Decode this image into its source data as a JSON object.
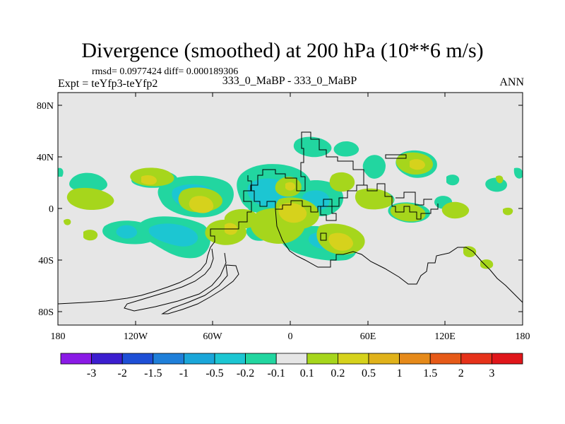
{
  "title": "Divergence (smoothed) at 200 hPa (10**6 m/s)",
  "stats": "rmsd= 0.0977424 diff= 0.000189306",
  "expt": "Expt = teYfp3-teYfp2",
  "case": "333_0_MaBP - 333_0_MaBP",
  "season": "ANN",
  "lat_labels": [
    "80N",
    "40N",
    "0",
    "40S",
    "80S"
  ],
  "lon_labels": [
    "180",
    "120W",
    "60W",
    "0",
    "60E",
    "120E",
    "180"
  ],
  "colorbar": {
    "labels": [
      "-3",
      "-2",
      "-1.5",
      "-1",
      "-0.5",
      "-0.2",
      "-0.1",
      "0.1",
      "0.2",
      "0.5",
      "1",
      "1.5",
      "2",
      "3"
    ],
    "colors": [
      "#8a1ae6",
      "#3c1ecf",
      "#1e4fd6",
      "#1f7fd9",
      "#1aa6d9",
      "#1cc6d2",
      "#22d6a0",
      "#e6e6e6",
      "#a6d61c",
      "#d6d21c",
      "#e0b21a",
      "#e68a1a",
      "#e65a18",
      "#e6321a",
      "#e0161a"
    ]
  },
  "colors": {
    "background": "#e6e6e6",
    "neg_weak": "#22d6a0",
    "neg_mid": "#1cc6d2",
    "pos_weak": "#a6d61c",
    "pos_mid": "#d6d21c",
    "pos_strong": "#e0b21a"
  }
}
